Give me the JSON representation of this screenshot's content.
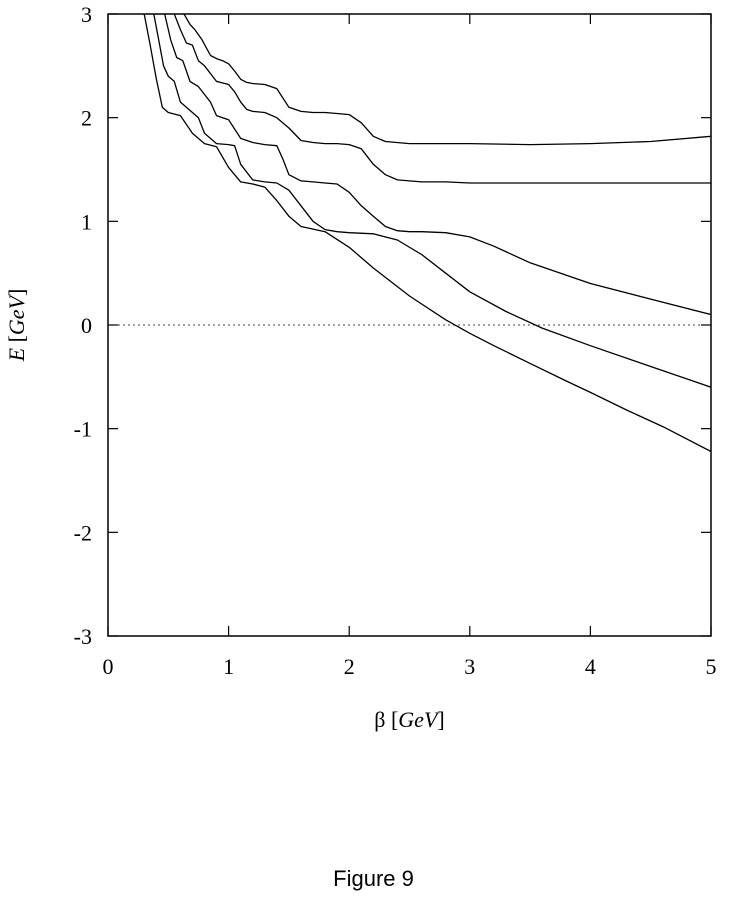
{
  "caption": "Figure 9",
  "chart_data": {
    "type": "line",
    "xlabel": "β [GeV]",
    "ylabel": "E [GeV]",
    "xlim": [
      0,
      5
    ],
    "ylim": [
      -3,
      3
    ],
    "x_ticks": [
      "0",
      "1",
      "2",
      "3",
      "4",
      "5"
    ],
    "y_ticks": [
      "3",
      "2",
      "1",
      "0",
      "-1",
      "-2",
      "-3"
    ],
    "grid": false,
    "zero_line": {
      "y": 0,
      "style": "dotted"
    },
    "series": [
      {
        "x": [
          0.3,
          0.35,
          0.4,
          0.45,
          0.5,
          0.6,
          0.7,
          0.8,
          0.9,
          1.0,
          1.1,
          1.2,
          1.3,
          1.4,
          1.5,
          1.6,
          1.8,
          2.0,
          2.2,
          2.5,
          2.8,
          3.0,
          3.2,
          3.5,
          3.8,
          4.0,
          4.3,
          4.6,
          5.0
        ],
        "y": [
          3.0,
          2.7,
          2.38,
          2.1,
          2.05,
          2.02,
          1.85,
          1.75,
          1.72,
          1.52,
          1.38,
          1.36,
          1.33,
          1.2,
          1.05,
          0.95,
          0.9,
          0.75,
          0.55,
          0.28,
          0.05,
          -0.08,
          -0.2,
          -0.37,
          -0.54,
          -0.65,
          -0.82,
          -0.98,
          -1.22
        ]
      },
      {
        "x": [
          0.38,
          0.42,
          0.46,
          0.5,
          0.55,
          0.6,
          0.7,
          0.75,
          0.8,
          0.9,
          1.0,
          1.05,
          1.1,
          1.2,
          1.3,
          1.4,
          1.5,
          1.6,
          1.7,
          1.8,
          1.9,
          2.0,
          2.2,
          2.4,
          2.6,
          2.8,
          3.0,
          3.3,
          3.6,
          4.0,
          4.5,
          5.0
        ],
        "y": [
          3.0,
          2.75,
          2.5,
          2.4,
          2.35,
          2.15,
          2.05,
          2.0,
          1.85,
          1.75,
          1.74,
          1.73,
          1.55,
          1.4,
          1.38,
          1.37,
          1.3,
          1.15,
          1.0,
          0.92,
          0.9,
          0.89,
          0.88,
          0.82,
          0.68,
          0.5,
          0.32,
          0.13,
          -0.03,
          -0.2,
          -0.4,
          -0.6
        ]
      },
      {
        "x": [
          0.47,
          0.52,
          0.57,
          0.62,
          0.68,
          0.75,
          0.85,
          0.9,
          0.95,
          1.0,
          1.1,
          1.2,
          1.3,
          1.4,
          1.45,
          1.5,
          1.6,
          1.7,
          1.8,
          1.9,
          2.0,
          2.1,
          2.2,
          2.3,
          2.4,
          2.5,
          2.6,
          2.8,
          3.0,
          3.2,
          3.5,
          4.0,
          4.5,
          5.0
        ],
        "y": [
          3.0,
          2.75,
          2.58,
          2.55,
          2.35,
          2.3,
          2.15,
          2.02,
          2.0,
          1.98,
          1.8,
          1.76,
          1.74,
          1.73,
          1.6,
          1.45,
          1.39,
          1.38,
          1.37,
          1.36,
          1.28,
          1.15,
          1.05,
          0.95,
          0.91,
          0.9,
          0.9,
          0.89,
          0.85,
          0.76,
          0.6,
          0.4,
          0.25,
          0.1
        ]
      },
      {
        "x": [
          0.55,
          0.6,
          0.65,
          0.7,
          0.75,
          0.8,
          0.9,
          1.0,
          1.05,
          1.1,
          1.15,
          1.2,
          1.3,
          1.4,
          1.5,
          1.6,
          1.7,
          1.8,
          1.9,
          2.0,
          2.1,
          2.2,
          2.3,
          2.4,
          2.5,
          2.6,
          2.8,
          3.0,
          3.5,
          4.0,
          4.5,
          5.0
        ],
        "y": [
          3.0,
          2.85,
          2.72,
          2.7,
          2.55,
          2.5,
          2.35,
          2.32,
          2.25,
          2.15,
          2.08,
          2.06,
          2.05,
          2.0,
          1.9,
          1.78,
          1.76,
          1.75,
          1.75,
          1.74,
          1.7,
          1.55,
          1.45,
          1.4,
          1.39,
          1.38,
          1.38,
          1.37,
          1.37,
          1.37,
          1.37,
          1.37
        ]
      },
      {
        "x": [
          0.63,
          0.68,
          0.72,
          0.78,
          0.85,
          0.9,
          0.95,
          1.0,
          1.05,
          1.1,
          1.15,
          1.2,
          1.3,
          1.4,
          1.5,
          1.6,
          1.7,
          1.8,
          1.9,
          2.0,
          2.1,
          2.2,
          2.3,
          2.5,
          3.0,
          3.5,
          4.0,
          4.5,
          5.0
        ],
        "y": [
          3.0,
          2.9,
          2.85,
          2.75,
          2.6,
          2.57,
          2.55,
          2.52,
          2.45,
          2.37,
          2.34,
          2.33,
          2.32,
          2.28,
          2.1,
          2.06,
          2.05,
          2.05,
          2.04,
          2.03,
          1.95,
          1.82,
          1.77,
          1.75,
          1.75,
          1.74,
          1.75,
          1.77,
          1.82
        ]
      }
    ]
  }
}
